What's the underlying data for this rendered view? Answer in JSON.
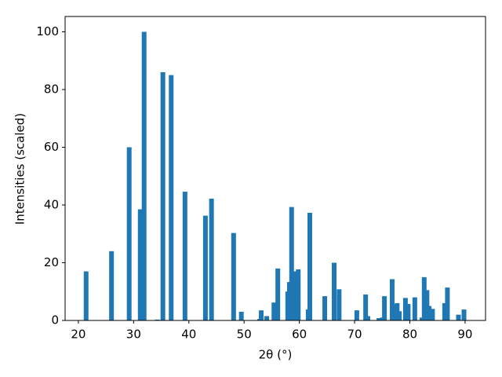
{
  "chart_data": {
    "type": "bar",
    "xlabel": "2θ (°)",
    "ylabel": "Intensities (scaled)",
    "x": [
      21.4,
      26.0,
      29.2,
      31.2,
      31.9,
      34.3,
      35.3,
      36.8,
      39.3,
      43.0,
      44.1,
      48.1,
      49.5,
      52.8,
      53.1,
      54.1,
      55.4,
      56.1,
      57.9,
      58.2,
      58.6,
      59.1,
      59.2,
      59.8,
      61.6,
      61.9,
      64.6,
      66.3,
      67.2,
      70.4,
      72.0,
      72.4,
      74.4,
      75.0,
      75.4,
      76.8,
      77.4,
      77.7,
      78.1,
      79.2,
      79.7,
      80.9,
      82.2,
      82.6,
      83.1,
      83.5,
      84.1,
      86.3,
      86.8,
      88.8,
      89.8
    ],
    "values": [
      17,
      24,
      60,
      38.5,
      100,
      0.3,
      86,
      85,
      44.6,
      36.3,
      42.2,
      30.3,
      3,
      0.5,
      3.5,
      1.5,
      6.2,
      18,
      10,
      13.3,
      39.3,
      17,
      7,
      17.7,
      3.8,
      37.3,
      8.4,
      20,
      10.8,
      3.5,
      9,
      1.5,
      0.8,
      1,
      8.4,
      14.3,
      5.5,
      6,
      3.2,
      7.8,
      5.7,
      8,
      1,
      15,
      10.5,
      5,
      4,
      6,
      11.4,
      2,
      3.8
    ],
    "color": "#1f77b4",
    "xlim": [
      17.6,
      93.7
    ],
    "xticks": [
      20,
      30,
      40,
      50,
      60,
      70,
      80,
      90
    ],
    "ylim": [
      0,
      105.3
    ],
    "yticks": [
      0,
      20,
      40,
      60,
      80,
      100
    ]
  }
}
